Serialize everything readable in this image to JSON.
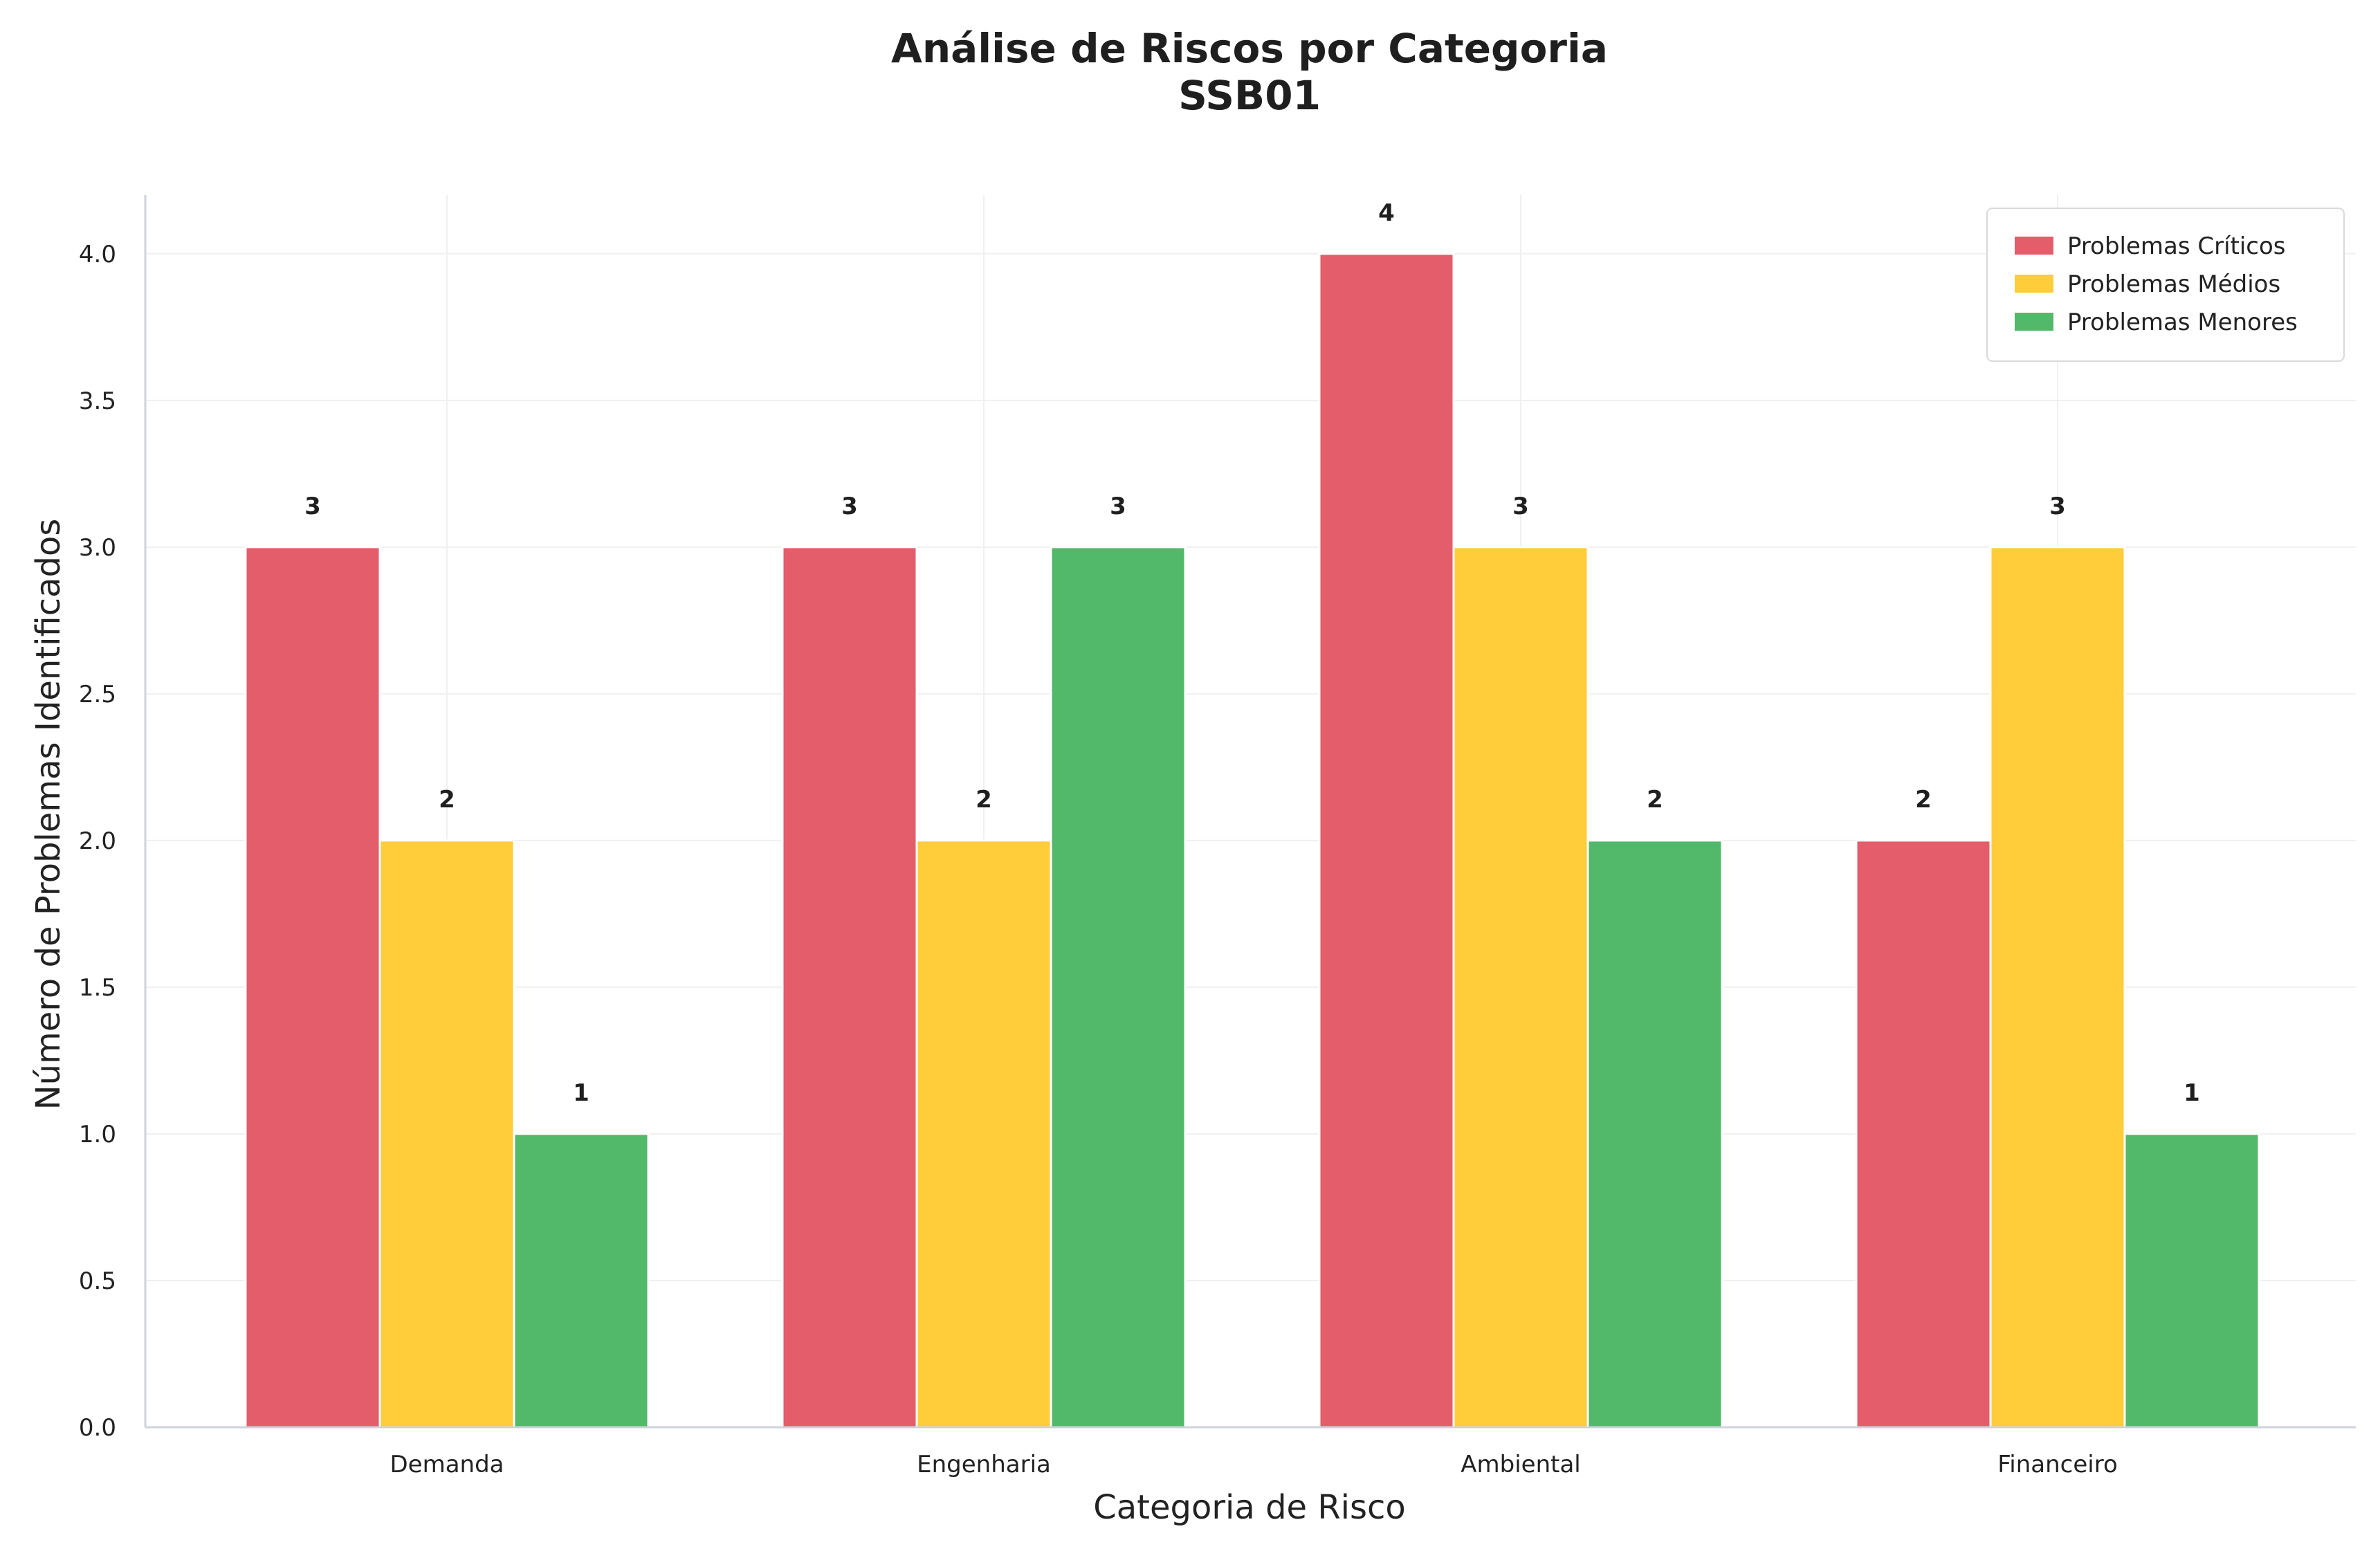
{
  "chart_data": {
    "type": "bar",
    "title": "Análise de Riscos por Categoria",
    "subtitle": "SSB01",
    "xlabel": "Categoria de Risco",
    "ylabel": "Número de Problemas Identificados",
    "categories": [
      "Demanda",
      "Engenharia",
      "Ambiental",
      "Financeiro"
    ],
    "series": [
      {
        "name": "Problemas Críticos",
        "values": [
          3,
          3,
          4,
          2
        ],
        "color": "#e35d6a"
      },
      {
        "name": "Problemas Médios",
        "values": [
          2,
          2,
          3,
          3
        ],
        "color": "#ffcc3a"
      },
      {
        "name": "Problemas Menores",
        "values": [
          1,
          3,
          2,
          1
        ],
        "color": "#52b86a"
      }
    ],
    "ylim": [
      0,
      4.2
    ],
    "yticks": [
      0.0,
      0.5,
      1.0,
      1.5,
      2.0,
      2.5,
      3.0,
      3.5,
      4.0
    ],
    "grid": true,
    "legend_position": "top-right",
    "data_labels": true
  }
}
